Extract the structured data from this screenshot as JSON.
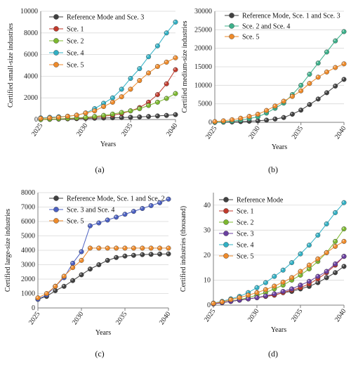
{
  "chart_data": [
    {
      "id": "a",
      "caption": "(a)",
      "type": "line",
      "xlabel": "Years",
      "ylabel": "Certified small-size industries",
      "xlim": [
        2025,
        2040
      ],
      "ylim": [
        0,
        10000
      ],
      "xticks": [
        "2025",
        "2030",
        "2035",
        "2040"
      ],
      "yticks": [
        "0",
        "2000",
        "4000",
        "6000",
        "8000",
        "10000"
      ],
      "x": [
        2025,
        2026,
        2027,
        2028,
        2029,
        2030,
        2031,
        2032,
        2033,
        2034,
        2035,
        2036,
        2037,
        2038,
        2039,
        2040
      ],
      "legend_position": "top-right",
      "series": [
        {
          "name": "Reference Mode and Sce. 3",
          "color": "#404040",
          "values": [
            0,
            20,
            40,
            60,
            80,
            100,
            120,
            140,
            160,
            180,
            210,
            240,
            280,
            330,
            380,
            450
          ]
        },
        {
          "name": "Sce. 1",
          "color": "#c0392b",
          "values": [
            0,
            20,
            50,
            80,
            120,
            160,
            220,
            300,
            400,
            550,
            800,
            1100,
            1600,
            2300,
            3300,
            4600
          ]
        },
        {
          "name": "Sce. 2",
          "color": "#7cb82f",
          "values": [
            0,
            30,
            60,
            100,
            150,
            200,
            280,
            380,
            500,
            650,
            800,
            1000,
            1300,
            1600,
            1950,
            2400
          ]
        },
        {
          "name": "Sce. 4",
          "color": "#31b0c4",
          "values": [
            150,
            200,
            250,
            300,
            400,
            600,
            1000,
            1500,
            2000,
            2800,
            3800,
            4700,
            5800,
            6800,
            8000,
            9000
          ]
        },
        {
          "name": "Sce. 5",
          "color": "#ee8a2a",
          "values": [
            100,
            150,
            200,
            300,
            400,
            600,
            800,
            1200,
            1600,
            2100,
            2800,
            3600,
            4300,
            4900,
            5300,
            5700
          ]
        }
      ]
    },
    {
      "id": "b",
      "caption": "(b)",
      "type": "line",
      "xlabel": "Years",
      "ylabel": "Certified medium-size industries",
      "xlim": [
        2025,
        2040
      ],
      "ylim": [
        0,
        30000
      ],
      "xticks": [
        "2025",
        "2030",
        "2035",
        "2040"
      ],
      "yticks": [
        "0",
        "5000",
        "10000",
        "15000",
        "20000",
        "25000",
        "30000"
      ],
      "x": [
        2025,
        2026,
        2027,
        2028,
        2029,
        2030,
        2031,
        2032,
        2033,
        2034,
        2035,
        2036,
        2037,
        2038,
        2039,
        2040
      ],
      "legend_position": "top-right",
      "series": [
        {
          "name": "Reference Mode, Sce. 1 and Sce. 3",
          "color": "#404040",
          "values": [
            0,
            50,
            100,
            200,
            300,
            400,
            600,
            900,
            1300,
            2200,
            3300,
            4800,
            6300,
            8000,
            9800,
            11600
          ]
        },
        {
          "name": "Sce. 2 and Sce. 4",
          "color": "#3cb08a",
          "values": [
            0,
            100,
            300,
            600,
            1000,
            1500,
            2500,
            3800,
            5200,
            7500,
            10000,
            13000,
            16000,
            19000,
            22000,
            24500
          ]
        },
        {
          "name": "Sce. 5",
          "color": "#ee8a2a",
          "values": [
            200,
            400,
            700,
            1100,
            1600,
            2200,
            3200,
            4400,
            5700,
            7000,
            8500,
            10500,
            12200,
            13600,
            14800,
            15800
          ]
        }
      ]
    },
    {
      "id": "c",
      "caption": "(c)",
      "type": "line",
      "xlabel": "Years",
      "ylabel": "Certified large-size  industries",
      "xlim": [
        2025,
        2040
      ],
      "ylim": [
        0,
        8000
      ],
      "xticks": [
        "2025",
        "2030",
        "2035",
        "2040"
      ],
      "yticks": [
        "0",
        "1000",
        "2000",
        "3000",
        "4000",
        "5000",
        "6000",
        "7000",
        "8000"
      ],
      "x": [
        2025,
        2026,
        2027,
        2028,
        2029,
        2030,
        2031,
        2032,
        2033,
        2034,
        2035,
        2036,
        2037,
        2038,
        2039,
        2040
      ],
      "legend_position": "top-right",
      "series": [
        {
          "name": "Reference Mode, Sce. 1 and Sce. 2",
          "color": "#404040",
          "values": [
            600,
            800,
            1200,
            1500,
            1900,
            2300,
            2700,
            3000,
            3300,
            3500,
            3600,
            3650,
            3700,
            3720,
            3740,
            3750
          ]
        },
        {
          "name": "Sce. 3 and Sce. 4",
          "color": "#4a5fc1",
          "values": [
            600,
            900,
            1500,
            2100,
            3100,
            3900,
            5700,
            5900,
            6100,
            6300,
            6500,
            6700,
            6900,
            7100,
            7300,
            7550
          ]
        },
        {
          "name": "Sce. 5",
          "color": "#ee8a2a",
          "values": [
            700,
            1000,
            1500,
            2200,
            2800,
            3300,
            4150,
            4150,
            4150,
            4150,
            4150,
            4150,
            4150,
            4150,
            4150,
            4150
          ]
        }
      ]
    },
    {
      "id": "d",
      "caption": "(d)",
      "type": "line",
      "xlabel": "Years",
      "ylabel": "Certified industries  (thousand)",
      "xlim": [
        2025,
        2040
      ],
      "ylim": [
        0,
        45
      ],
      "xticks": [
        "2025",
        "2030",
        "2035",
        "2040"
      ],
      "yticks": [
        "0",
        "10",
        "20",
        "30",
        "40"
      ],
      "x": [
        2025,
        2026,
        2027,
        2028,
        2029,
        2030,
        2031,
        2032,
        2033,
        2034,
        2035,
        2036,
        2037,
        2038,
        2039,
        2040
      ],
      "legend_position": "top-left",
      "series": [
        {
          "name": "Reference Mode",
          "color": "#404040",
          "values": [
            0.5,
            1,
            1.5,
            2,
            2.5,
            3,
            3.5,
            4,
            5,
            5.5,
            6.5,
            7.5,
            9,
            11,
            13,
            15.5
          ]
        },
        {
          "name": "Sce. 1",
          "color": "#c0392b",
          "values": [
            0.5,
            1,
            1.5,
            2,
            2.5,
            3,
            3.5,
            4,
            5,
            6,
            7,
            8.5,
            10.5,
            13,
            16,
            19.5
          ]
        },
        {
          "name": "Sce. 2",
          "color": "#7cb82f",
          "values": [
            0.6,
            1.1,
            1.6,
            2.2,
            3,
            4,
            5,
            6.5,
            8,
            10,
            12,
            14.5,
            17.5,
            21,
            25.5,
            30.5
          ]
        },
        {
          "name": "Sce. 3",
          "color": "#6a3fa0",
          "values": [
            0.5,
            1,
            1.5,
            2,
            2.5,
            3,
            3.7,
            4.5,
            5.5,
            6.5,
            8,
            9.5,
            11.5,
            13.5,
            16.5,
            19.5
          ]
        },
        {
          "name": "Sce. 4",
          "color": "#31b0c4",
          "values": [
            0.8,
            1.5,
            2.5,
            3.5,
            5,
            7,
            9,
            11.5,
            14,
            17,
            20.5,
            24,
            28,
            32.5,
            37,
            41
          ]
        },
        {
          "name": "Sce. 5",
          "color": "#ee8a2a",
          "values": [
            0.7,
            1.3,
            2.2,
            3,
            4,
            5,
            6.2,
            7.6,
            9.2,
            11,
            13.5,
            16,
            18.5,
            21,
            23.5,
            25.5
          ]
        }
      ]
    }
  ]
}
